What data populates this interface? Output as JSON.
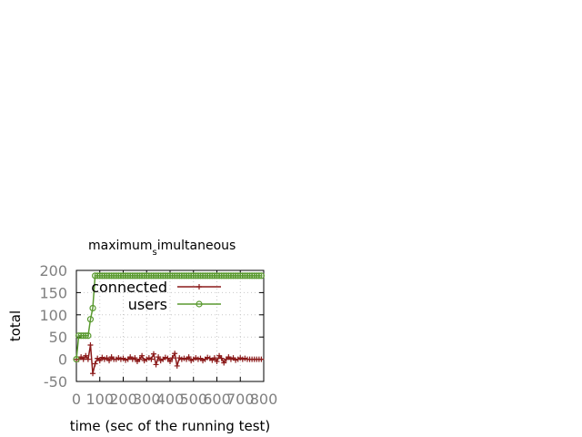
{
  "chart_data": {
    "type": "line",
    "title": "maximum_simultaneous",
    "title_main": "maximum",
    "title_sub": "s",
    "title_rest": "imultaneous",
    "xlabel": "time (sec of the running test)",
    "ylabel": "total",
    "xlim": [
      0,
      800
    ],
    "ylim": [
      -50,
      200
    ],
    "x_ticks": [
      "0",
      "100",
      "200",
      "300",
      "400",
      "500",
      "600",
      "700",
      "800"
    ],
    "y_ticks": [
      "-50",
      "0",
      "50",
      "100",
      "150",
      "200"
    ],
    "grid": true,
    "legend": "top-left",
    "series": [
      {
        "name": "connected",
        "color": "#8b1a1a",
        "marker": "plus",
        "x": [
          0,
          10,
          20,
          30,
          40,
          50,
          60,
          70,
          80,
          90,
          100,
          110,
          120,
          130,
          140,
          150,
          160,
          170,
          180,
          190,
          200,
          210,
          220,
          230,
          240,
          250,
          260,
          270,
          280,
          290,
          300,
          310,
          320,
          330,
          340,
          350,
          360,
          370,
          380,
          390,
          400,
          410,
          420,
          430,
          440,
          450,
          460,
          470,
          480,
          490,
          500,
          510,
          520,
          530,
          540,
          550,
          560,
          570,
          580,
          590,
          600,
          610,
          620,
          630,
          640,
          650,
          660,
          670,
          680,
          690,
          700,
          710,
          720,
          730,
          740,
          750,
          760,
          770,
          780,
          790
        ],
        "values": [
          0,
          0,
          5,
          0,
          8,
          0,
          32,
          -32,
          -10,
          2,
          -3,
          4,
          0,
          3,
          -3,
          5,
          0,
          0,
          3,
          0,
          2,
          -2,
          0,
          5,
          0,
          3,
          -5,
          0,
          8,
          -3,
          0,
          3,
          0,
          12,
          -12,
          5,
          -3,
          0,
          4,
          2,
          -5,
          3,
          13,
          -15,
          3,
          0,
          2,
          0,
          5,
          -3,
          0,
          3,
          0,
          2,
          -3,
          0,
          4,
          2,
          -2,
          3,
          -5,
          8,
          2,
          -8,
          0,
          5,
          0,
          3,
          -2,
          0,
          3,
          0,
          2,
          0,
          0,
          0,
          0,
          0,
          0,
          0
        ]
      },
      {
        "name": "users",
        "color": "#5a9a30",
        "marker": "circle",
        "x": [
          0,
          10,
          20,
          30,
          40,
          50,
          60,
          70,
          80,
          90,
          100,
          110,
          120,
          130,
          140,
          150,
          160,
          170,
          180,
          190,
          200,
          210,
          220,
          230,
          240,
          250,
          260,
          270,
          280,
          290,
          300,
          310,
          320,
          330,
          340,
          350,
          360,
          370,
          380,
          390,
          400,
          410,
          420,
          430,
          440,
          450,
          460,
          470,
          480,
          490,
          500,
          510,
          520,
          530,
          540,
          550,
          560,
          570,
          580,
          590,
          600,
          610,
          620,
          630,
          640,
          650,
          660,
          670,
          680,
          690,
          700,
          710,
          720,
          730,
          740,
          750,
          760,
          770,
          780,
          790
        ],
        "values": [
          0,
          53,
          53,
          53,
          53,
          53,
          90,
          115,
          188,
          188,
          188,
          188,
          188,
          188,
          188,
          188,
          188,
          188,
          188,
          188,
          188,
          188,
          188,
          188,
          188,
          188,
          188,
          188,
          188,
          188,
          188,
          188,
          188,
          188,
          188,
          188,
          188,
          188,
          188,
          188,
          188,
          188,
          188,
          188,
          188,
          188,
          188,
          188,
          188,
          188,
          188,
          188,
          188,
          188,
          188,
          188,
          188,
          188,
          188,
          188,
          188,
          188,
          188,
          188,
          188,
          188,
          188,
          188,
          188,
          188,
          188,
          188,
          188,
          188,
          188,
          188,
          188,
          188,
          188,
          188
        ]
      }
    ]
  }
}
